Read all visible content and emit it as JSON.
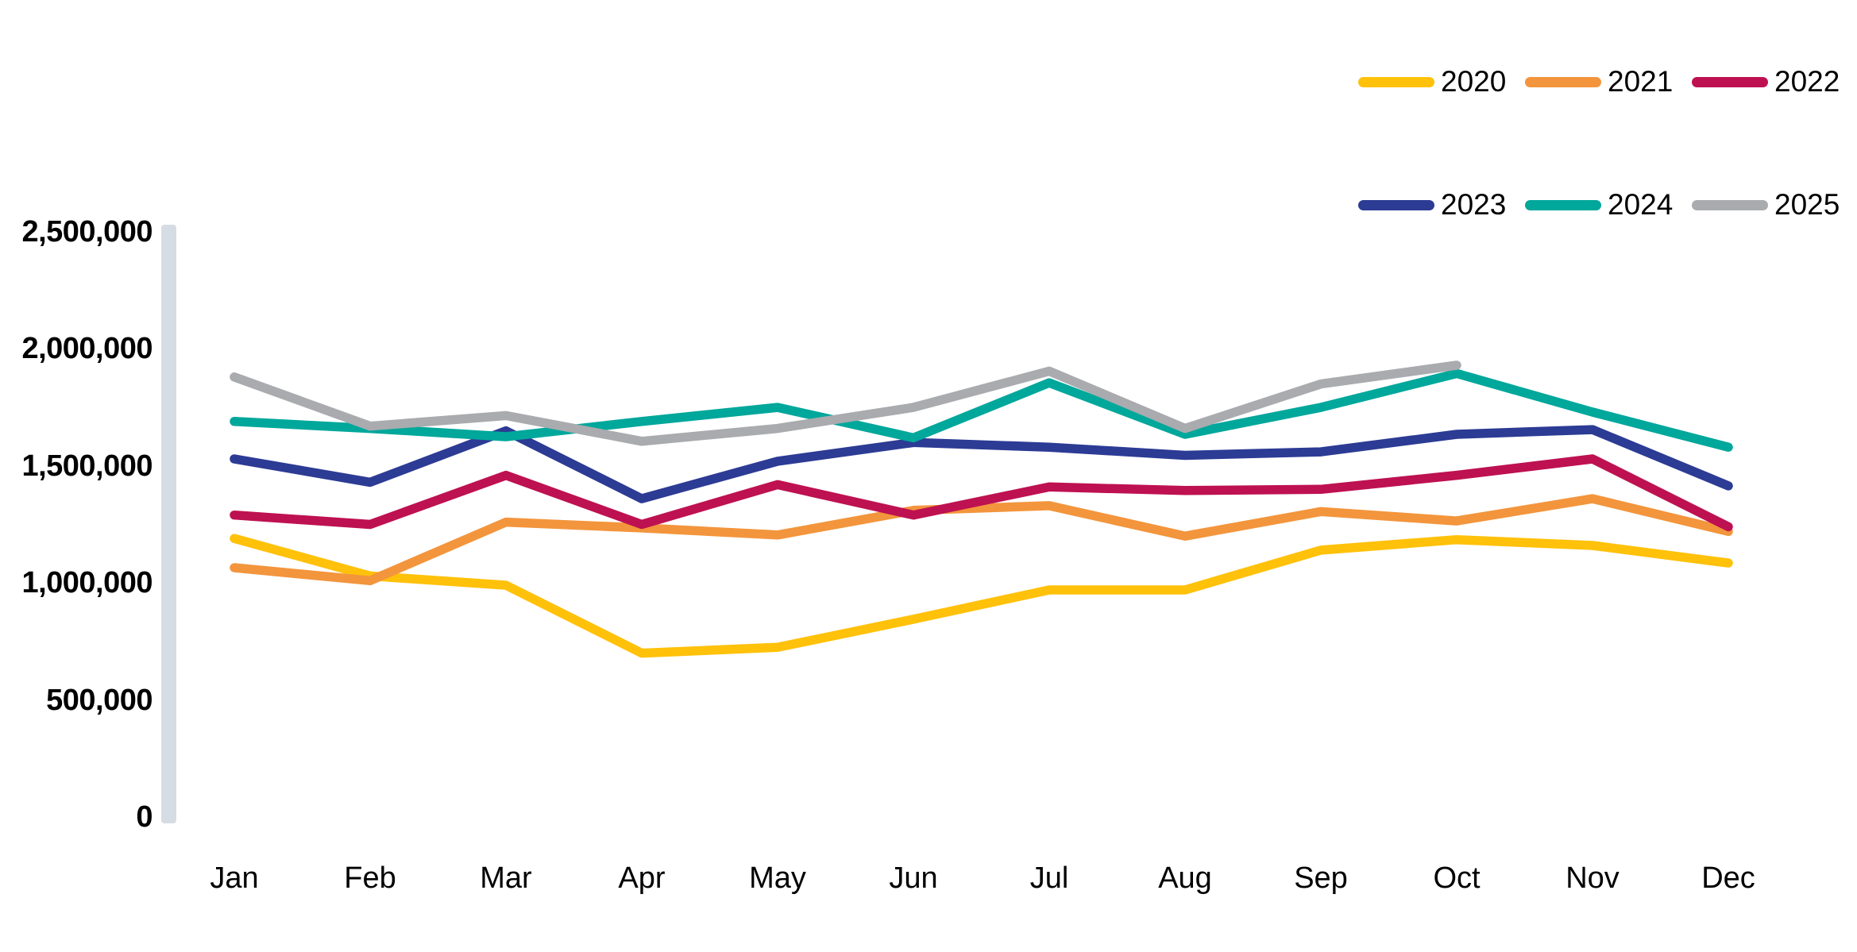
{
  "chart_data": {
    "type": "line",
    "title": "",
    "xlabel": "",
    "ylabel": "",
    "categories": [
      "Jan",
      "Feb",
      "Mar",
      "Apr",
      "May",
      "Jun",
      "Jul",
      "Aug",
      "Sep",
      "Oct",
      "Nov",
      "Dec"
    ],
    "series": [
      {
        "name": "2020",
        "color": "#FFC10A",
        "values": [
          1190000,
          1030000,
          990000,
          700000,
          725000,
          845000,
          970000,
          970000,
          1140000,
          1185000,
          1160000,
          1085000
        ]
      },
      {
        "name": "2021",
        "color": "#F3953C",
        "values": [
          1065000,
          1010000,
          1260000,
          1235000,
          1205000,
          1310000,
          1330000,
          1200000,
          1305000,
          1265000,
          1360000,
          1220000
        ]
      },
      {
        "name": "2022",
        "color": "#BE1151",
        "values": [
          1290000,
          1250000,
          1460000,
          1250000,
          1420000,
          1290000,
          1410000,
          1395000,
          1400000,
          1460000,
          1530000,
          1240000
        ]
      },
      {
        "name": "2023",
        "color": "#2C3B94",
        "values": [
          1530000,
          1430000,
          1650000,
          1360000,
          1520000,
          1600000,
          1580000,
          1545000,
          1560000,
          1635000,
          1655000,
          1415000
        ]
      },
      {
        "name": "2024",
        "color": "#00A79B",
        "values": [
          1690000,
          1660000,
          1625000,
          1690000,
          1750000,
          1620000,
          1855000,
          1635000,
          1750000,
          1895000,
          1730000,
          1580000
        ]
      },
      {
        "name": "2025",
        "color": "#A9ABAE",
        "values": [
          1880000,
          1670000,
          1715000,
          1605000,
          1660000,
          1750000,
          1905000,
          1660000,
          1850000,
          1930000,
          null,
          null
        ]
      }
    ],
    "ylim": [
      0,
      2500000
    ],
    "ytick_interval": 500000,
    "yticks": [
      0,
      500000,
      1000000,
      1500000,
      2000000,
      2500000
    ],
    "ytick_labels": [
      "0",
      "500,000",
      "1,000,000",
      "1,500,000",
      "2,000,000",
      "2,500,000"
    ],
    "grid": "off",
    "legend_position": "top-right",
    "legend_rows": [
      [
        "2020",
        "2021",
        "2022"
      ],
      [
        "2023",
        "2024",
        "2025"
      ]
    ]
  },
  "style": {
    "axis_band_color": "#D6DCE4",
    "label_color": "#000000",
    "background": "#FFFFFF",
    "line_width": 11.5
  }
}
